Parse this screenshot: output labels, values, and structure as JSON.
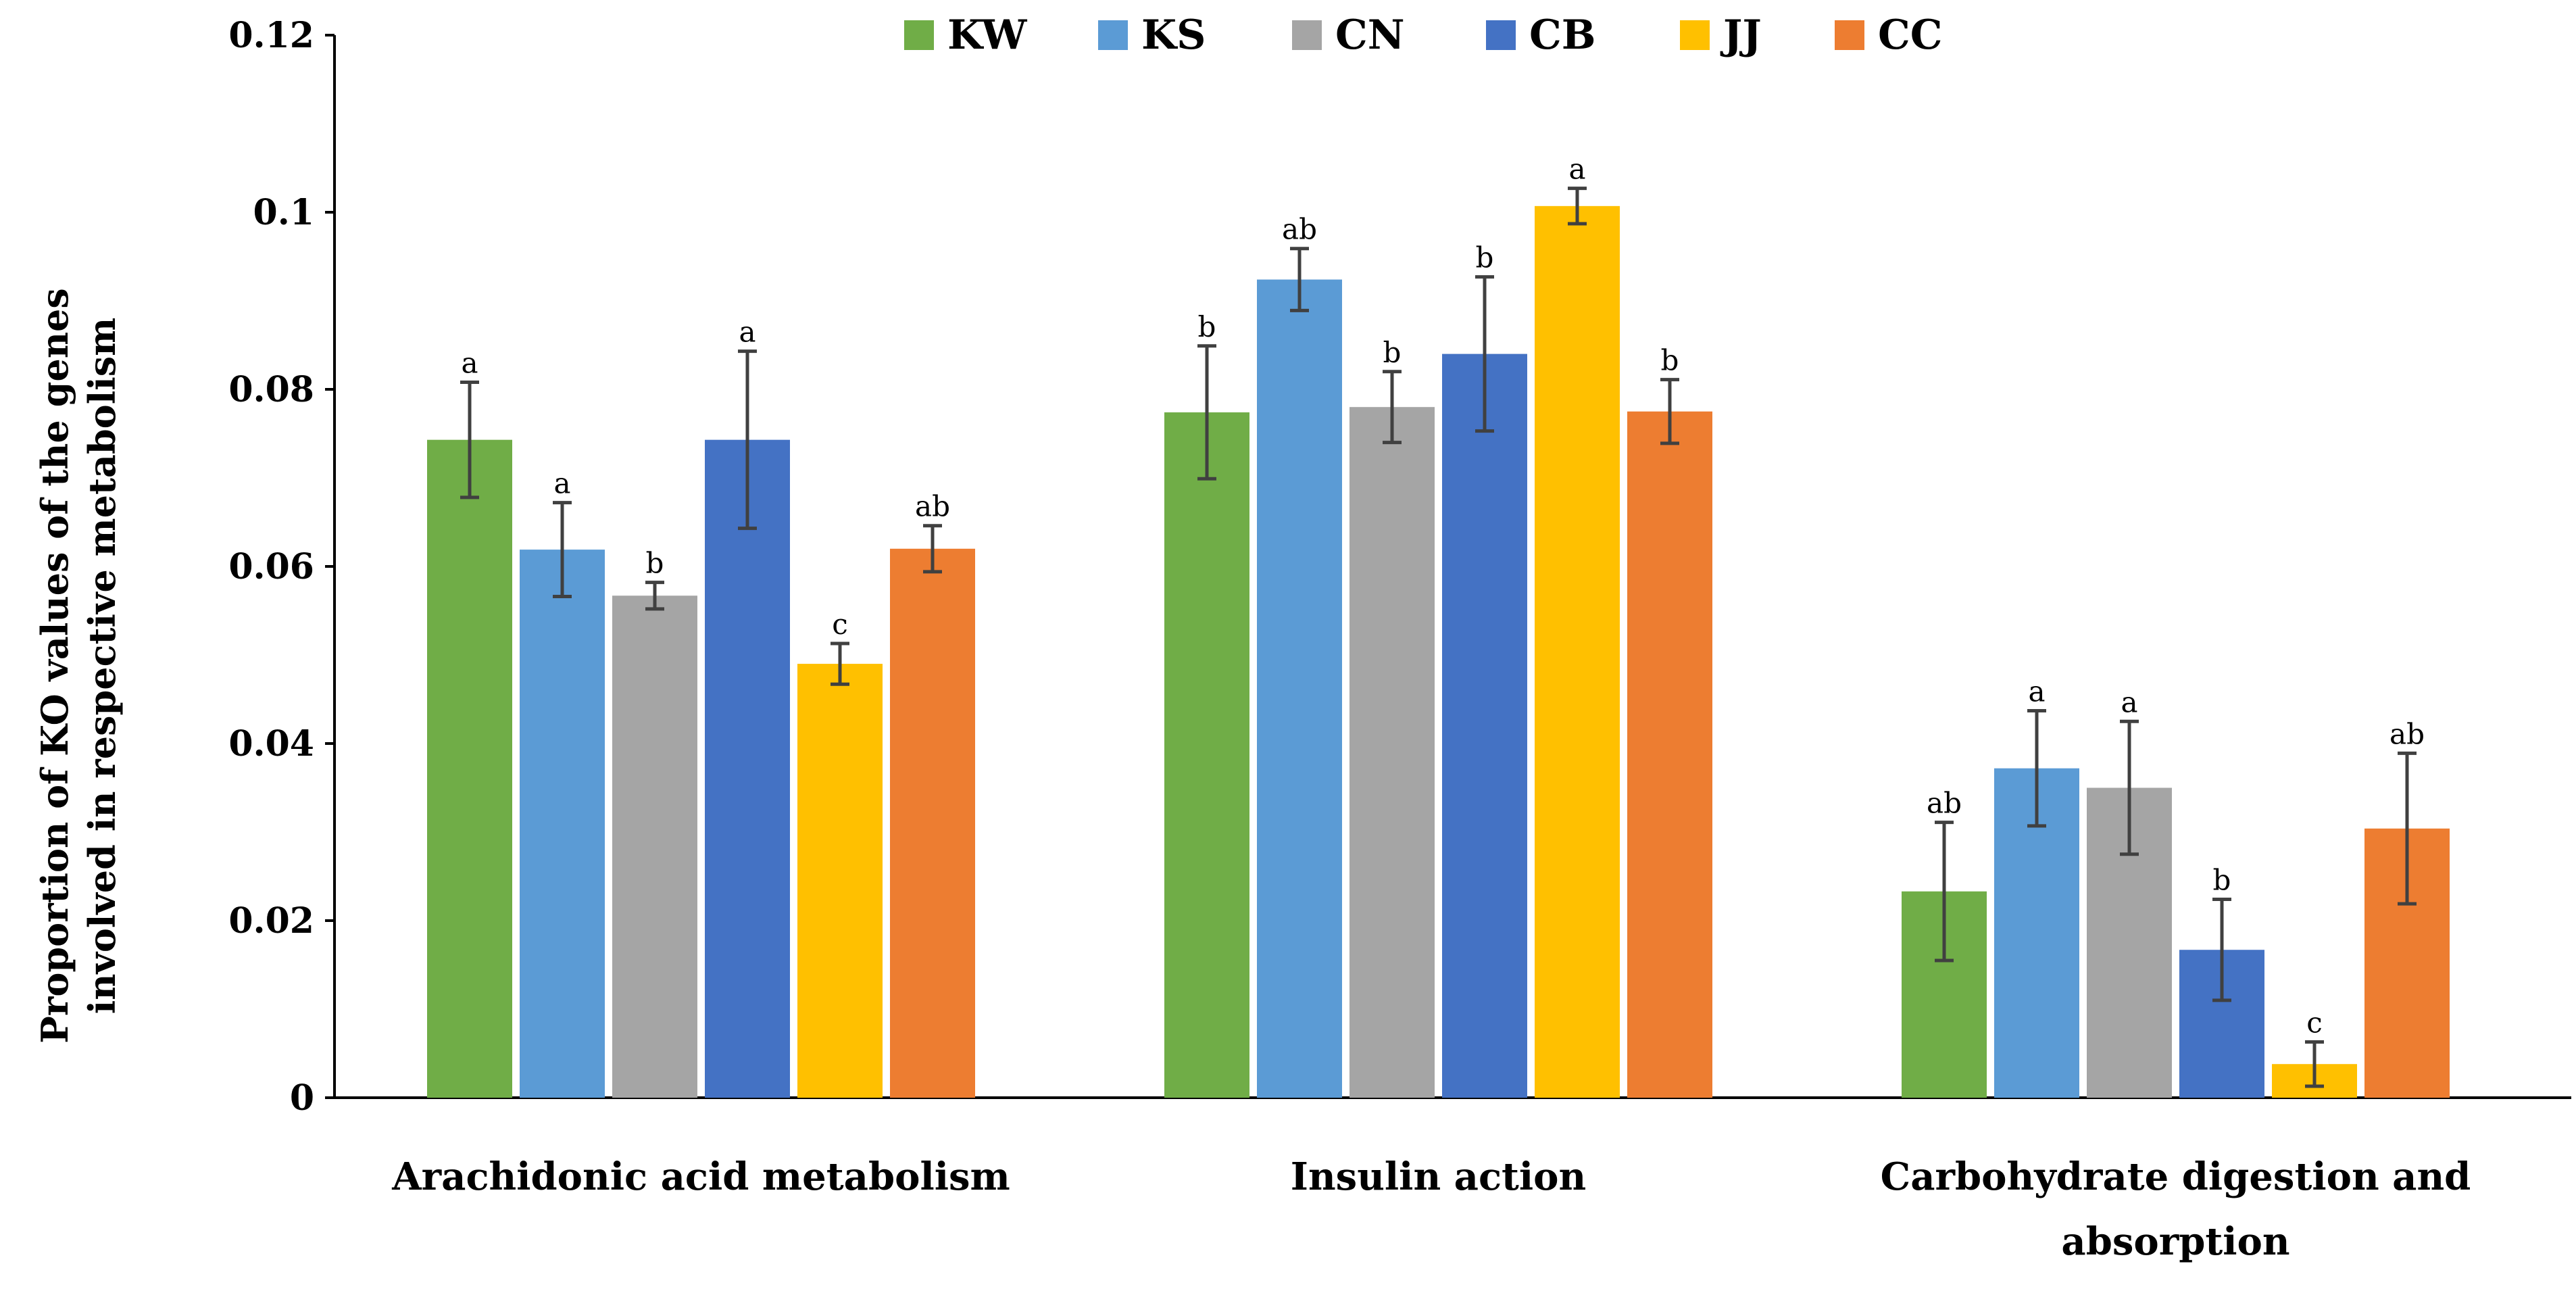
{
  "chart_data": {
    "type": "bar",
    "title": "",
    "ylabel": [
      "Proportion of KO values of the genes",
      "involved in respective metabolism"
    ],
    "ylim": [
      0,
      0.12
    ],
    "yticks": [
      "0",
      "0.02",
      "0.04",
      "0.06",
      "0.08",
      "0.1",
      "0.12"
    ],
    "ytick_values": [
      0,
      0.02,
      0.04,
      0.06,
      0.08,
      0.1,
      0.12
    ],
    "grid": false,
    "legend_position": "top-center",
    "categories": [
      [
        "Arachidonic acid metabolism"
      ],
      [
        "Insulin action"
      ],
      [
        "Carbohydrate digestion and",
        "absorption"
      ]
    ],
    "series": [
      {
        "name": "KW",
        "color": "#70ad47",
        "values": [
          0.0743,
          0.0774,
          0.0233
        ],
        "errors": [
          0.0065,
          0.0075,
          0.0078
        ],
        "labels": [
          "a",
          "b",
          "ab"
        ]
      },
      {
        "name": "KS",
        "color": "#5b9bd5",
        "values": [
          0.0619,
          0.0924,
          0.0372
        ],
        "errors": [
          0.0053,
          0.0035,
          0.0065
        ],
        "labels": [
          "a",
          "ab",
          "a"
        ]
      },
      {
        "name": "CN",
        "color": "#a5a5a5",
        "values": [
          0.0567,
          0.078,
          0.035
        ],
        "errors": [
          0.0015,
          0.004,
          0.0075
        ],
        "labels": [
          "b",
          "b",
          "a"
        ]
      },
      {
        "name": "CB",
        "color": "#4472c4",
        "values": [
          0.0743,
          0.084,
          0.0167
        ],
        "errors": [
          0.01,
          0.0087,
          0.0057
        ],
        "labels": [
          "a",
          "b",
          "b"
        ]
      },
      {
        "name": "JJ",
        "color": "#ffc000",
        "values": [
          0.049,
          0.1007,
          0.0038
        ],
        "errors": [
          0.0023,
          0.002,
          0.0025
        ],
        "labels": [
          "c",
          "a",
          "c"
        ]
      },
      {
        "name": "CC",
        "color": "#ed7d31",
        "values": [
          0.062,
          0.0775,
          0.0304
        ],
        "errors": [
          0.0026,
          0.0036,
          0.0085
        ],
        "labels": [
          "ab",
          "b",
          "ab"
        ]
      }
    ]
  }
}
